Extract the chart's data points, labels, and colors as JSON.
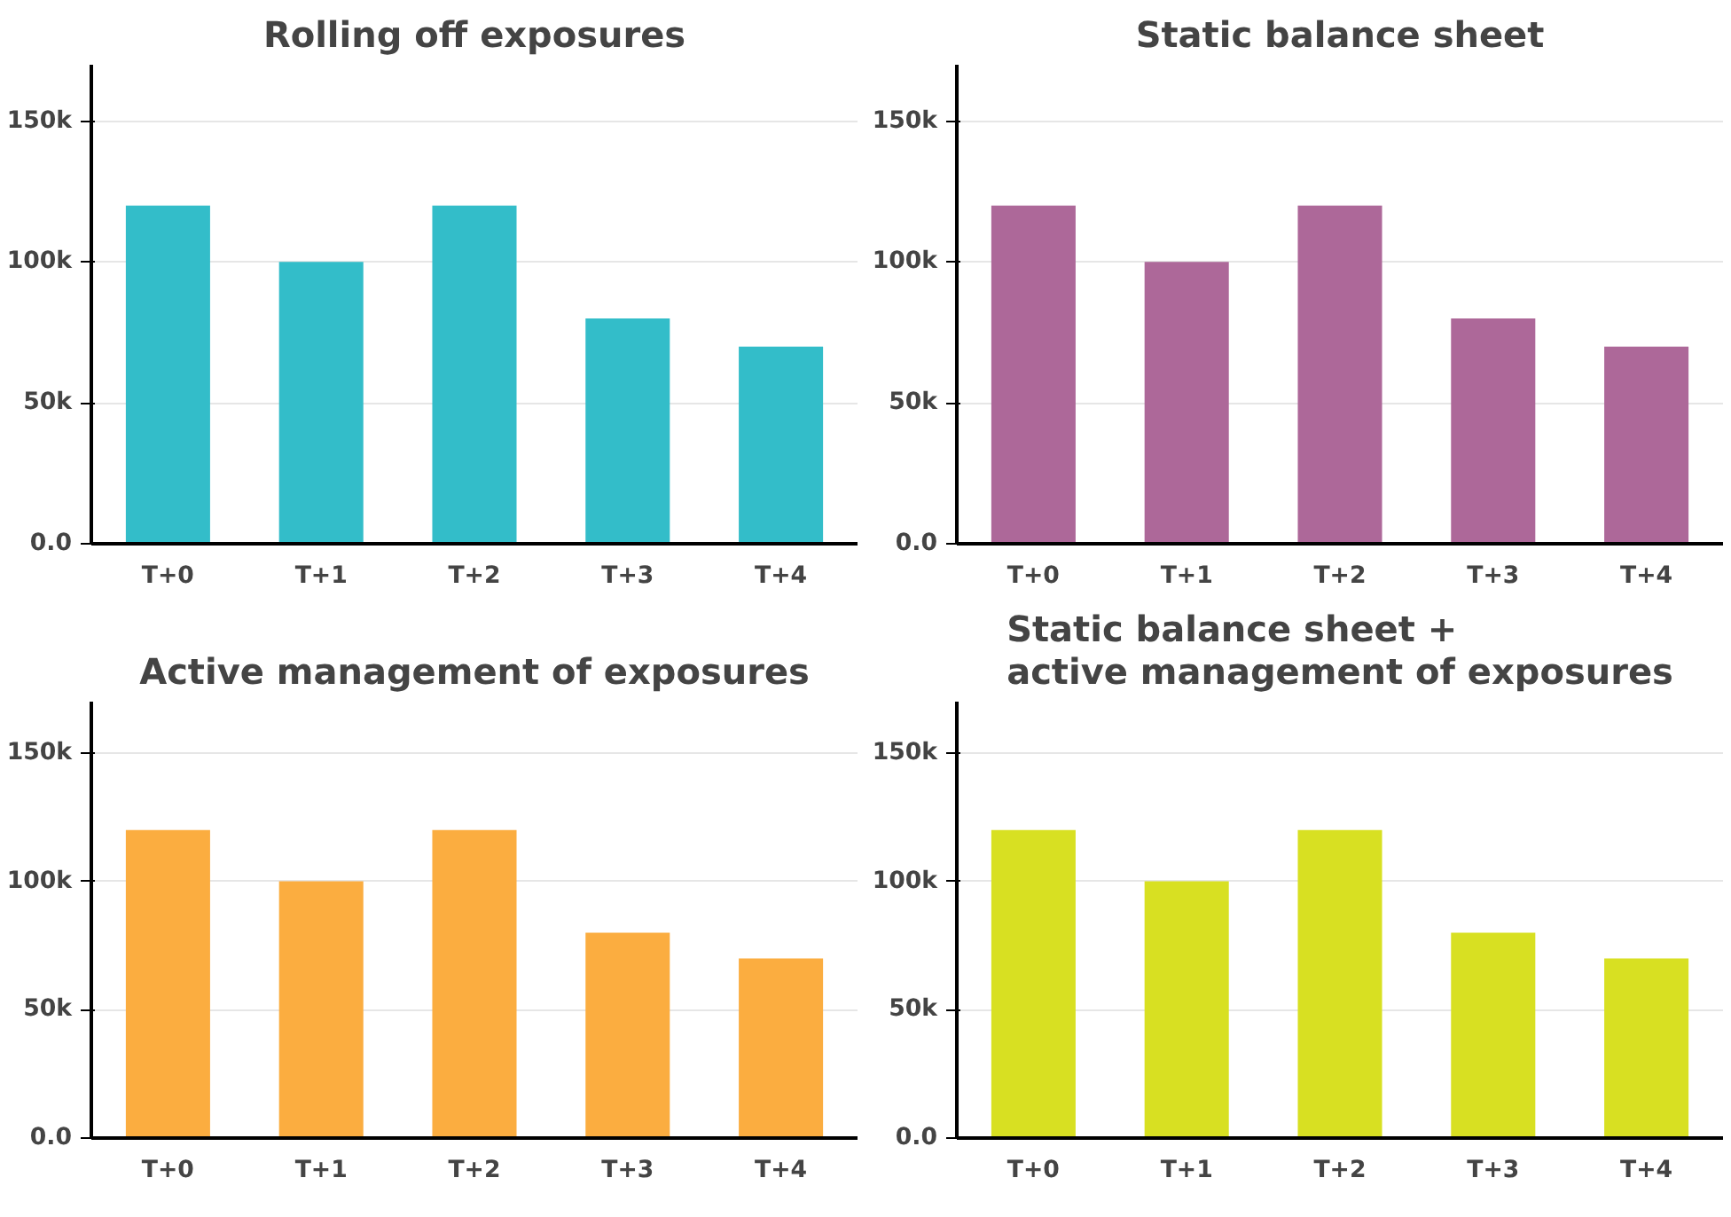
{
  "chart_data": [
    {
      "type": "bar",
      "title": "Rolling off exposures",
      "categories": [
        "T+0",
        "T+1",
        "T+2",
        "T+3",
        "T+4"
      ],
      "values": [
        120000,
        100000,
        120000,
        80000,
        70000
      ],
      "color": "#33bdc9",
      "ylim": [
        0,
        170000
      ],
      "yticks": [
        {
          "value": 0,
          "label": "0.0"
        },
        {
          "value": 50000,
          "label": "50k"
        },
        {
          "value": 100000,
          "label": "100k"
        },
        {
          "value": 150000,
          "label": "150k"
        }
      ],
      "grid": "y"
    },
    {
      "type": "bar",
      "title": "Static balance sheet",
      "categories": [
        "T+0",
        "T+1",
        "T+2",
        "T+3",
        "T+4"
      ],
      "values": [
        120000,
        100000,
        120000,
        80000,
        70000
      ],
      "color": "#ad6899",
      "ylim": [
        0,
        170000
      ],
      "yticks": [
        {
          "value": 0,
          "label": "0.0"
        },
        {
          "value": 50000,
          "label": "50k"
        },
        {
          "value": 100000,
          "label": "100k"
        },
        {
          "value": 150000,
          "label": "150k"
        }
      ],
      "grid": "y"
    },
    {
      "type": "bar",
      "title": "Active management of exposures",
      "categories": [
        "T+0",
        "T+1",
        "T+2",
        "T+3",
        "T+4"
      ],
      "values": [
        120000,
        100000,
        120000,
        80000,
        70000
      ],
      "color": "#fbad40",
      "ylim": [
        0,
        170000
      ],
      "yticks": [
        {
          "value": 0,
          "label": "0.0"
        },
        {
          "value": 50000,
          "label": "50k"
        },
        {
          "value": 100000,
          "label": "100k"
        },
        {
          "value": 150000,
          "label": "150k"
        }
      ],
      "grid": "y"
    },
    {
      "type": "bar",
      "title": "Static balance sheet +\nactive management of exposures",
      "categories": [
        "T+0",
        "T+1",
        "T+2",
        "T+3",
        "T+4"
      ],
      "values": [
        120000,
        100000,
        120000,
        80000,
        70000
      ],
      "color": "#d8e022",
      "ylim": [
        0,
        170000
      ],
      "yticks": [
        {
          "value": 0,
          "label": "0.0"
        },
        {
          "value": 50000,
          "label": "50k"
        },
        {
          "value": 100000,
          "label": "100k"
        },
        {
          "value": 150000,
          "label": "150k"
        }
      ],
      "grid": "y"
    }
  ]
}
